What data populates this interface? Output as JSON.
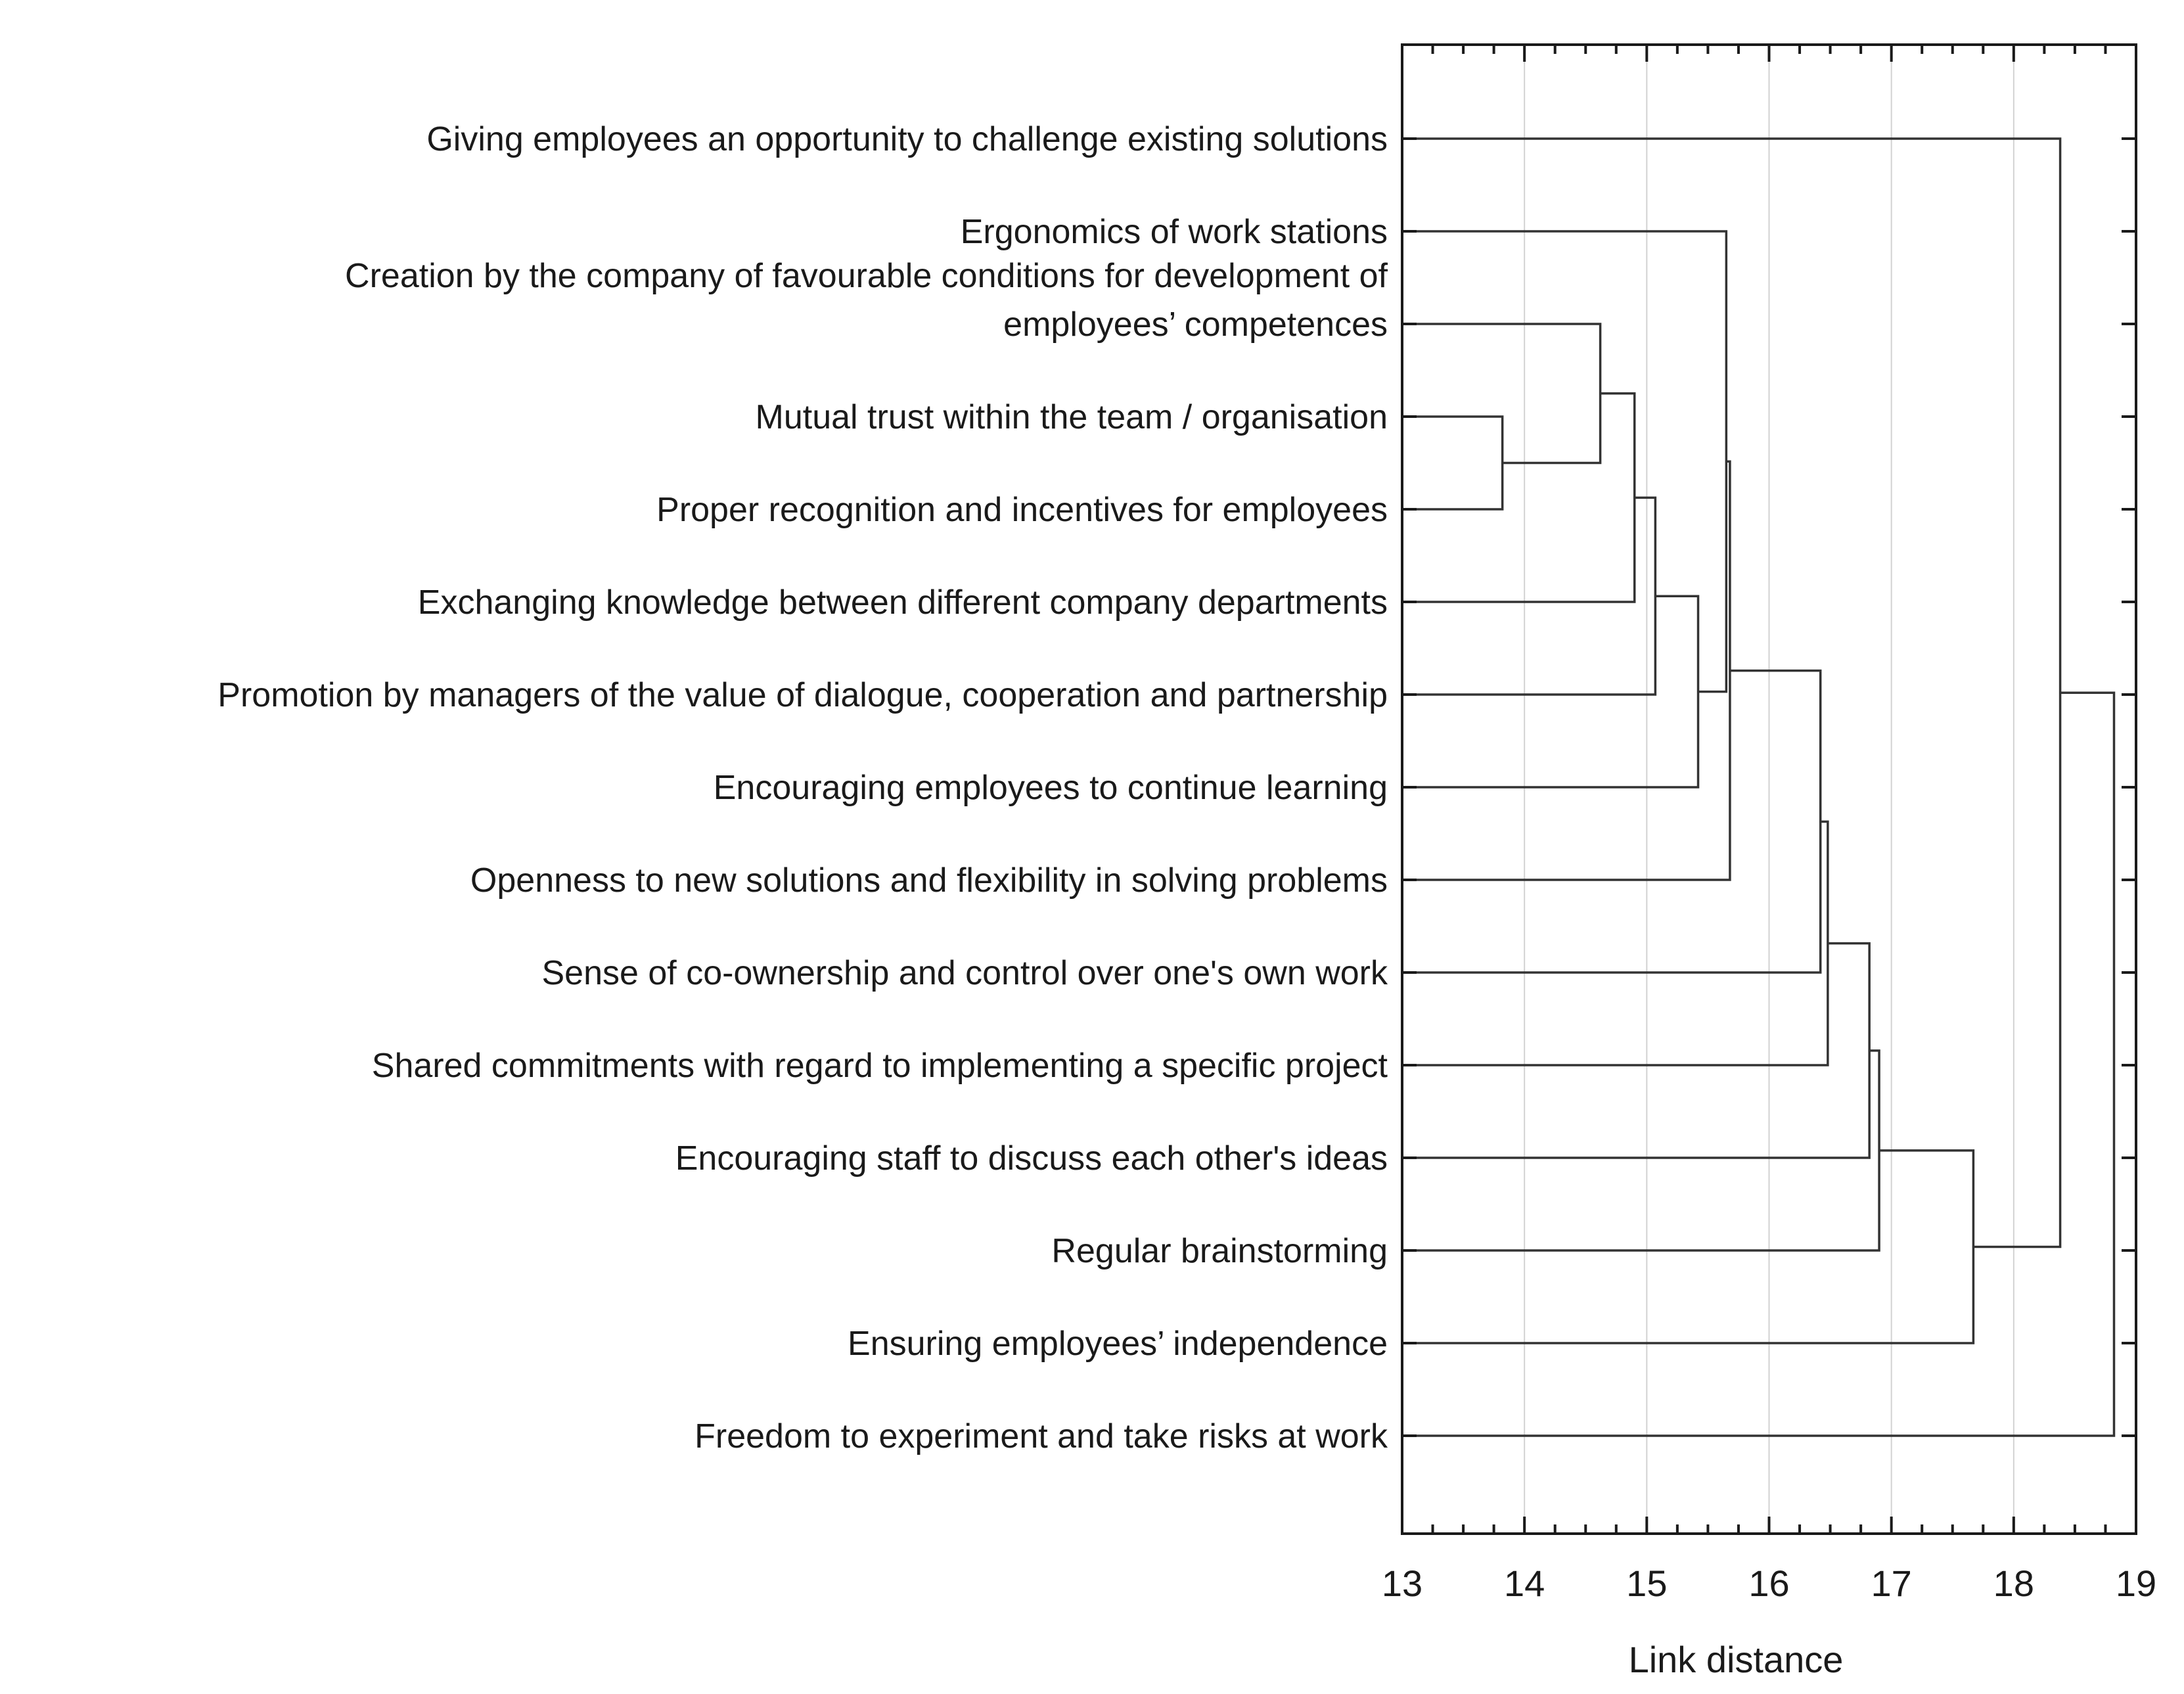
{
  "chart_data": {
    "type": "dendrogram",
    "orientation": "horizontal",
    "xlabel": "Link distance",
    "xlim": [
      13,
      19
    ],
    "xticks": [
      "13",
      "14",
      "15",
      "16",
      "17",
      "18",
      "19"
    ],
    "grid": true,
    "leaves": [
      {
        "id": "L1",
        "label": [
          "Giving employees an opportunity to challenge existing solutions"
        ]
      },
      {
        "id": "L2",
        "label": [
          "Ergonomics of work stations"
        ]
      },
      {
        "id": "L3",
        "label": [
          "Creation by the company of favourable conditions for development of",
          "employees’ competences"
        ]
      },
      {
        "id": "L4",
        "label": [
          "Mutual trust within the team / organisation"
        ]
      },
      {
        "id": "L5",
        "label": [
          "Proper recognition and incentives for employees"
        ]
      },
      {
        "id": "L6",
        "label": [
          "Exchanging knowledge between different company departments"
        ]
      },
      {
        "id": "L7",
        "label": [
          "Promotion by managers of the value of dialogue, cooperation and partnership"
        ]
      },
      {
        "id": "L8",
        "label": [
          "Encouraging employees to continue learning"
        ]
      },
      {
        "id": "L9",
        "label": [
          "Openness to new solutions and flexibility in solving problems"
        ]
      },
      {
        "id": "L10",
        "label": [
          "Sense of co-ownership and control over one's own work"
        ]
      },
      {
        "id": "L11",
        "label": [
          "Shared commitments with regard to implementing a specific project"
        ]
      },
      {
        "id": "L12",
        "label": [
          "Encouraging staff to discuss each other's ideas"
        ]
      },
      {
        "id": "L13",
        "label": [
          "Regular brainstorming"
        ]
      },
      {
        "id": "L14",
        "label": [
          "Ensuring employees’ independence"
        ]
      },
      {
        "id": "L15",
        "label": [
          "Freedom to experiment and take risks at work"
        ]
      }
    ],
    "merges": [
      {
        "id": "M1",
        "left": "L4",
        "right": "L5",
        "distance": 13.82
      },
      {
        "id": "M2",
        "left": "L3",
        "right": "M1",
        "distance": 14.62
      },
      {
        "id": "M3",
        "left": "M2",
        "right": "L6",
        "distance": 14.9
      },
      {
        "id": "M4",
        "left": "M3",
        "right": "L7",
        "distance": 15.07
      },
      {
        "id": "M5",
        "left": "M4",
        "right": "L8",
        "distance": 15.42
      },
      {
        "id": "M6",
        "left": "L2",
        "right": "M5",
        "distance": 15.65
      },
      {
        "id": "M7",
        "left": "M6",
        "right": "L9",
        "distance": 15.68
      },
      {
        "id": "M8",
        "left": "M7",
        "right": "L10",
        "distance": 16.42
      },
      {
        "id": "M9",
        "left": "M8",
        "right": "L11",
        "distance": 16.48
      },
      {
        "id": "M10",
        "left": "M9",
        "right": "L12",
        "distance": 16.82
      },
      {
        "id": "M11",
        "left": "M10",
        "right": "L13",
        "distance": 16.9
      },
      {
        "id": "M12",
        "left": "M11",
        "right": "L14",
        "distance": 17.67
      },
      {
        "id": "M13",
        "left": "L1",
        "right": "M12",
        "distance": 18.38
      },
      {
        "id": "M14",
        "left": "M13",
        "right": "L15",
        "distance": 18.82
      }
    ]
  }
}
